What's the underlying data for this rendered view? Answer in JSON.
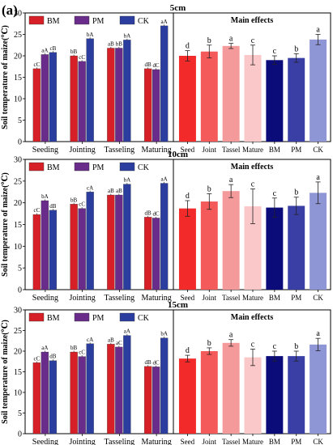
{
  "figure_label": "(a)",
  "colors": {
    "BM": "#d61f26",
    "PM": "#6a2c8a",
    "CK": "#2b3ea0",
    "Seed": "#f22a2a",
    "Joint": "#f45a5a",
    "Tassel": "#f59a9a",
    "Mature": "#fac8c8",
    "BM_main": "#0b0b7a",
    "PM_main": "#3a3fa6",
    "CK_main": "#8f96d6"
  },
  "chart_data": [
    {
      "type": "bar",
      "panel": "5cm",
      "title": "5cm",
      "ylabel": "Soil temperature of maize(℃)",
      "ylim": [
        0,
        30
      ],
      "yticks": [
        0,
        5,
        10,
        15,
        20,
        25,
        30
      ],
      "categories": [
        "Seeding",
        "Jointing",
        "Tasseling",
        "Maturing"
      ],
      "legend": [
        "BM",
        "PM",
        "CK"
      ],
      "series": [
        {
          "name": "BM",
          "values": [
            17.0,
            20.0,
            21.8,
            17.0
          ],
          "labels": [
            "cC",
            "bB",
            "aB",
            "dB"
          ]
        },
        {
          "name": "PM",
          "values": [
            20.3,
            18.7,
            21.8,
            16.8
          ],
          "labels": [
            "aA",
            "cC",
            "bB",
            "dC"
          ]
        },
        {
          "name": "CK",
          "values": [
            20.8,
            24.0,
            23.7,
            27.0
          ],
          "labels": [
            "cB",
            "bA",
            "bA",
            "aA"
          ]
        }
      ]
    },
    {
      "type": "bar",
      "panel": "5cm-main",
      "title": "Main effects",
      "ylim": [
        0,
        30
      ],
      "categories": [
        "Seed",
        "Joint",
        "Tassel",
        "Mature",
        "BM",
        "PM",
        "CK"
      ],
      "values": [
        20.0,
        21.0,
        22.3,
        20.2,
        19.0,
        19.5,
        23.8
      ],
      "errors": [
        1.2,
        1.5,
        0.6,
        2.3,
        1.0,
        1.0,
        1.2
      ],
      "labels": [
        "d",
        "b",
        "a",
        "c",
        "c",
        "b",
        "a"
      ]
    },
    {
      "type": "bar",
      "panel": "10cm",
      "title": "10cm",
      "ylabel": "Soil temperature of maize(℃)",
      "ylim": [
        0,
        30
      ],
      "yticks": [
        0,
        5,
        10,
        15,
        20,
        25,
        30
      ],
      "categories": [
        "Seeding",
        "Jointing",
        "Tasseling",
        "Maturing"
      ],
      "legend": [
        "BM",
        "PM",
        "CK"
      ],
      "series": [
        {
          "name": "BM",
          "values": [
            17.3,
            19.7,
            21.8,
            16.7
          ],
          "labels": [
            "cC",
            "bB",
            "aB",
            "dB"
          ]
        },
        {
          "name": "PM",
          "values": [
            20.5,
            18.7,
            21.8,
            16.5
          ],
          "labels": [
            "bA",
            "cC",
            "aB",
            "dC"
          ]
        },
        {
          "name": "CK",
          "values": [
            18.3,
            22.5,
            24.3,
            24.5
          ],
          "labels": [
            "dB",
            "cA",
            "bA",
            "aA"
          ]
        }
      ]
    },
    {
      "type": "bar",
      "panel": "10cm-main",
      "title": "Main effects",
      "ylim": [
        0,
        30
      ],
      "categories": [
        "Seed",
        "Joint",
        "Tassel",
        "Mature",
        "BM",
        "PM",
        "CK"
      ],
      "values": [
        18.7,
        20.3,
        22.7,
        19.2,
        18.9,
        19.3,
        22.3
      ],
      "errors": [
        1.8,
        1.8,
        1.5,
        4.0,
        2.2,
        2.0,
        2.5
      ],
      "labels": [
        "d",
        "b",
        "a",
        "c",
        "c",
        "b",
        "a"
      ]
    },
    {
      "type": "bar",
      "panel": "15cm",
      "title": "15cm",
      "ylabel": "Soil temperature of maize(℃)",
      "ylim": [
        0,
        30
      ],
      "yticks": [
        0,
        5,
        10,
        15,
        20,
        25,
        30
      ],
      "categories": [
        "Seeding",
        "Jointing",
        "Tasseling",
        "Maturing"
      ],
      "legend": [
        "BM",
        "PM",
        "CK"
      ],
      "series": [
        {
          "name": "BM",
          "values": [
            17.2,
            19.8,
            21.7,
            16.3
          ],
          "labels": [
            "cC",
            "bB",
            "aB",
            "dB"
          ]
        },
        {
          "name": "PM",
          "values": [
            19.8,
            18.7,
            21.0,
            16.2
          ],
          "labels": [
            "aA",
            "cC",
            "aC",
            "dC"
          ]
        },
        {
          "name": "CK",
          "values": [
            17.7,
            21.8,
            23.8,
            23.2
          ],
          "labels": [
            "dB",
            "cA",
            "aA",
            "bA"
          ]
        }
      ]
    },
    {
      "type": "bar",
      "panel": "15cm-main",
      "title": "Main effects",
      "ylim": [
        0,
        30
      ],
      "categories": [
        "Seed",
        "Joint",
        "Tassel",
        "Mature",
        "BM",
        "PM",
        "CK"
      ],
      "values": [
        18.2,
        20.0,
        22.0,
        18.5,
        18.8,
        18.8,
        21.6
      ],
      "errors": [
        0.8,
        0.8,
        0.8,
        2.0,
        1.2,
        1.2,
        1.5
      ],
      "labels": [
        "d",
        "b",
        "a",
        "c",
        "c",
        "b",
        "a"
      ]
    }
  ]
}
